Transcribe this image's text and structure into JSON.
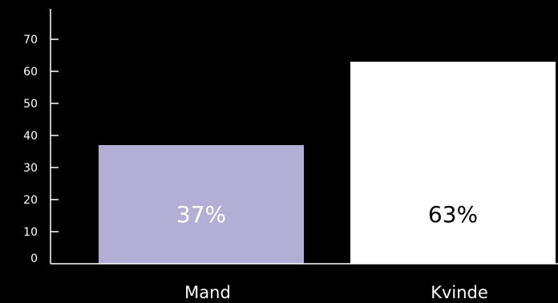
{
  "chart_data": {
    "type": "bar",
    "categories": [
      "Mand",
      "Kvinde"
    ],
    "values": [
      37,
      63
    ],
    "data_labels": [
      "37%",
      "63%"
    ],
    "bar_colors": [
      "#b3aed6",
      "#ffffff"
    ],
    "data_label_colors": [
      "#ffffff",
      "#000000"
    ],
    "title": "",
    "xlabel": "",
    "ylabel": "",
    "ylim": [
      0,
      75
    ],
    "yticks": [
      0,
      10,
      20,
      30,
      40,
      50,
      60,
      70
    ],
    "grid": false,
    "legend": "none",
    "background": "#000000",
    "axis_color": "#ffffff"
  }
}
